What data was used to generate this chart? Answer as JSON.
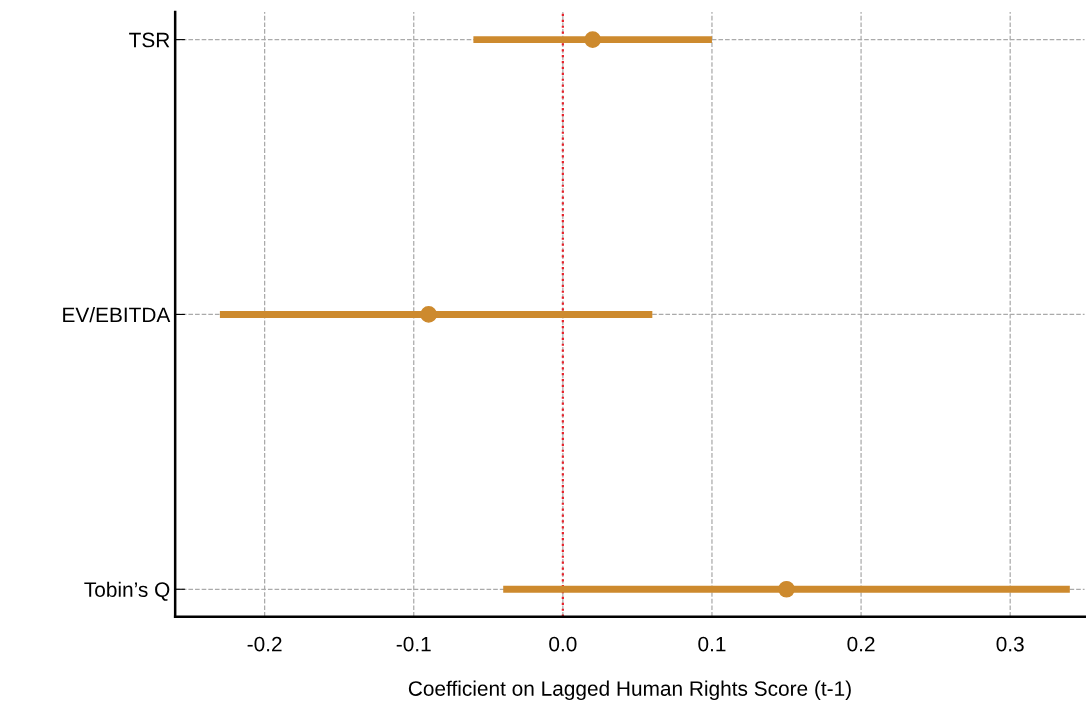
{
  "chart_data": {
    "type": "scatter",
    "orientation": "horizontal",
    "xlabel": "Coefficient on Lagged Human Rights Score (t-1)",
    "categories": [
      "TSR",
      "EV/EBITDA",
      "Tobin’s Q"
    ],
    "series": [
      {
        "color": "#cd8a2e",
        "values": [
          0.02,
          -0.09,
          0.15
        ],
        "errors": [
          [
            -0.06,
            0.1
          ],
          [
            -0.23,
            0.06
          ],
          [
            -0.04,
            0.34
          ]
        ]
      }
    ],
    "xlim": [
      -0.26,
      0.35
    ],
    "xticks": [
      {
        "value": -0.2,
        "label": "-0.2"
      },
      {
        "value": -0.1,
        "label": "-0.1"
      },
      {
        "value": 0,
        "label": "0.0"
      },
      {
        "value": 0.1,
        "label": "0.1"
      },
      {
        "value": 0.2,
        "label": "0.2"
      },
      {
        "value": 0.3,
        "label": "0.3"
      }
    ],
    "ref_lines": [
      {
        "axis": "x",
        "value": 0,
        "color": "#e8212a",
        "line_style": "dotted"
      }
    ],
    "grid": true,
    "marker": "circle"
  }
}
